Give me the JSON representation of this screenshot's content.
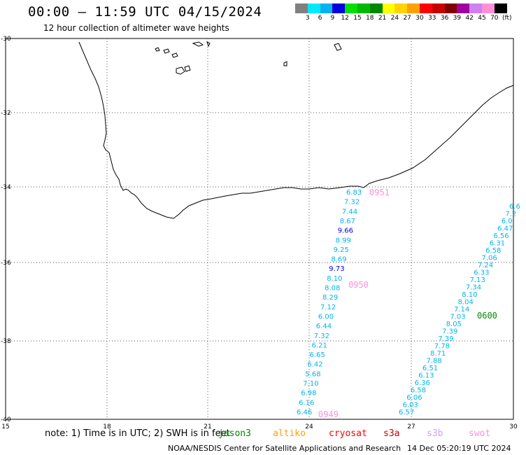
{
  "header": {
    "title": "00:00 – 11:59 UTC 04/15/2024",
    "subtitle": "12 hour collection of altimeter wave heights"
  },
  "colorbar": {
    "colors": [
      "#808080",
      "#00e8ff",
      "#00b4f0",
      "#0000e0",
      "#00e000",
      "#00b800",
      "#008800",
      "#ffff00",
      "#ffd400",
      "#ffa000",
      "#ff0000",
      "#c80000",
      "#800000",
      "#a000a0",
      "#d080f0",
      "#ff90d8",
      "#000000"
    ],
    "labels": [
      "3",
      "6",
      "9",
      "12",
      "15",
      "18",
      "21",
      "24",
      "27",
      "30",
      "33",
      "36",
      "39",
      "42",
      "45",
      "70"
    ],
    "unit": "(ft)"
  },
  "axes": {
    "lat_labels": [
      "-30",
      "-32",
      "-34",
      "-36",
      "-38",
      "-40"
    ],
    "lon_labels": [
      "15",
      "18",
      "21",
      "24",
      "27",
      "30"
    ]
  },
  "tracks": {
    "track1": [
      "6.83",
      "7.32",
      "7.44",
      "8.67",
      "9.66",
      "8.99",
      "9.25",
      "8.69",
      "9.73",
      "8.10",
      "8.08",
      "8.29",
      "7.12",
      "6.00",
      "6.44",
      "7.32",
      "6.21",
      "6.65",
      "6.42",
      "5.68",
      "7.10",
      "6.98",
      "6.16",
      "6.46"
    ],
    "track2": [
      "6.6",
      "7.2",
      "6.0",
      "6.47",
      "6.56",
      "6.31",
      "6.58",
      "7.06",
      "7.24",
      "6.33",
      "7.13",
      "7.34",
      "8.10",
      "8.04",
      "7.14",
      "7.03",
      "8.05",
      "7.39",
      "7.39",
      "7.78",
      "8.71",
      "7.88",
      "6.51",
      "6.13",
      "6.36",
      "6.58",
      "6.06",
      "6.03",
      "6.57"
    ]
  },
  "time_labels": {
    "t0951": "0951",
    "t0950": "0950",
    "t0949": "0949",
    "t0600": "0600"
  },
  "footer": {
    "note": "note: 1) Time is in UTC; 2) SWH is in feet",
    "missions": [
      "jason3",
      "altiko",
      "cryosat",
      "s3a",
      "s3b",
      "swot"
    ],
    "credit": "NOAA/NESDIS Center for Satellite Applications and Research",
    "generated": "14 Dec 05:20:19 UTC 2024"
  }
}
